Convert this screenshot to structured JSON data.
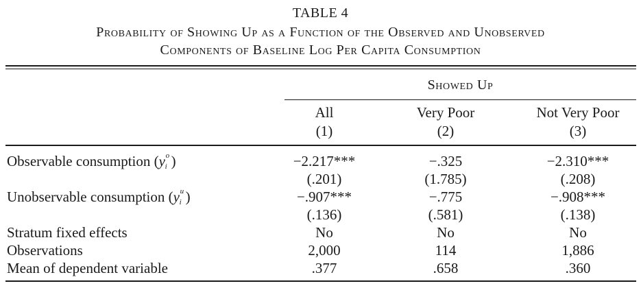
{
  "table_label": "TABLE 4",
  "caption_line1": "Probability of Showing Up as a Function of the Observed and Unobserved",
  "caption_line2": "Components of Baseline Log Per Capita Consumption",
  "spanner": "Showed Up",
  "columns": [
    {
      "label": "All",
      "number": "(1)"
    },
    {
      "label": "Very Poor",
      "number": "(2)"
    },
    {
      "label": "Not Very Poor",
      "number": "(3)"
    }
  ],
  "rows": {
    "observable": {
      "label": "Observable consumption",
      "symbol": "y",
      "superscript": "o",
      "subscript": "i",
      "values": [
        "−2.217***",
        "−.325",
        "−2.310***"
      ],
      "se": [
        "(.201)",
        "(1.785)",
        "(.208)"
      ]
    },
    "unobservable": {
      "label": "Unobservable consumption",
      "symbol": "y",
      "superscript": "u",
      "subscript": "i",
      "values": [
        "−.907***",
        "−.775",
        "−.908***"
      ],
      "se": [
        "(.136)",
        "(.581)",
        "(.138)"
      ]
    },
    "stratum": {
      "label": "Stratum fixed effects",
      "values": [
        "No",
        "No",
        "No"
      ]
    },
    "observations": {
      "label": "Observations",
      "values": [
        "2,000",
        "114",
        "1,886"
      ]
    },
    "mean": {
      "label": "Mean of dependent variable",
      "values": [
        ".377",
        ".658",
        ".360"
      ]
    }
  }
}
